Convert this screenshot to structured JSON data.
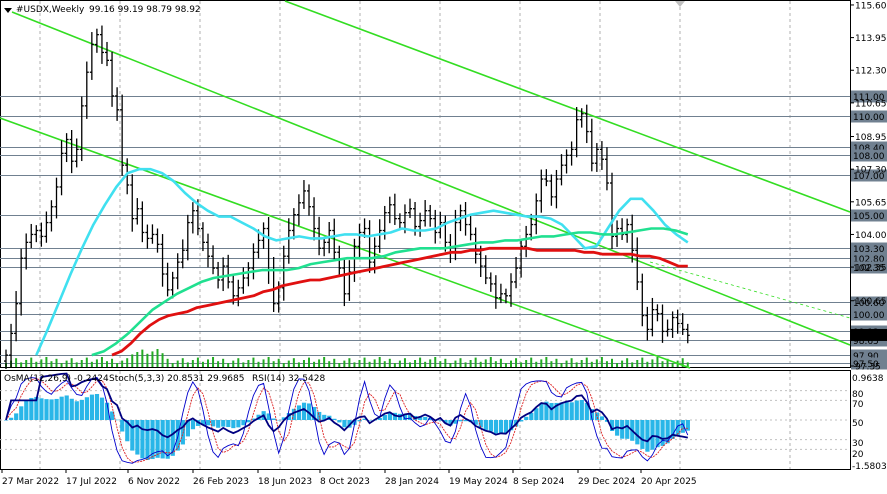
{
  "header": {
    "symbol": "#USDX,Weekly",
    "ohlc": "99.16 99.19 98.79 98.92"
  },
  "indicator_header": {
    "osma": "OsMA(12,26,9) -0.2424",
    "stoch": "Stoch(5,3,3) 20.8531 29.9685",
    "rsi": "RSI(14) 32.5428"
  },
  "colors": {
    "price_bars": "#000000",
    "sma50": "#40e0f0",
    "sma144": "#20e090",
    "sma200": "#e01010",
    "trendlines": "#33dd22",
    "osma_hist": "#29b6e8",
    "stoch_main": "#0000cc",
    "stoch_signal": "#dd2222",
    "rsi": "#000080",
    "volume": "#22aa22",
    "level_lines": "#708090"
  },
  "chart_data": {
    "type": "line",
    "series": [
      {
        "values": [
          97.9,
          99.0,
          100.5,
          102.8,
          103.6,
          104.0,
          104.2,
          103.9,
          104.6,
          105.4,
          106.4,
          108.1,
          108.8,
          107.7,
          108.3,
          110.5,
          112.2,
          113.6,
          114.1,
          113.2,
          112.8,
          111.0,
          110.3,
          107.5,
          106.5,
          104.8,
          105.3,
          104.1,
          103.8,
          104.0,
          103.5,
          102.0,
          101.2,
          101.8,
          102.6,
          103.2,
          104.6,
          105.2,
          104.3,
          103.6,
          102.9,
          102.3,
          101.7,
          102.4,
          101.6,
          100.9,
          101.3,
          101.8,
          102.3,
          103.1,
          103.7,
          104.3,
          102.2,
          100.5,
          101.3,
          102.9,
          104.2,
          105.0,
          105.6,
          106.2,
          105.4,
          104.3,
          103.3,
          103.6,
          104.2,
          103.1,
          102.3,
          101.0,
          102.1,
          103.4,
          104.1,
          104.3,
          102.6,
          103.4,
          104.2,
          105.1,
          105.5,
          104.8,
          104.6,
          105.1,
          105.3,
          104.4,
          104.7,
          105.2,
          104.8,
          104.1,
          104.6,
          103.6,
          103.1,
          104.6,
          105.2,
          104.5,
          104.0,
          103.0,
          102.4,
          101.8,
          101.5,
          100.8,
          101.0,
          100.9,
          101.6,
          102.3,
          103.4,
          104.0,
          104.5,
          105.7,
          106.8,
          106.7,
          105.9,
          106.8,
          107.5,
          108.0,
          108.3,
          109.8,
          110.1,
          109.2,
          107.6,
          108.3,
          107.8,
          106.6,
          103.9,
          104.3,
          104.0,
          104.5,
          103.2,
          101.6,
          99.9,
          99.2,
          100.2,
          100.0,
          99.1,
          99.2,
          99.8,
          99.5,
          99.2,
          98.9
        ]
      },
      {
        "name": "SMA50",
        "values": [
          97.9,
          99.2,
          100.6,
          102.0,
          103.3,
          104.5,
          105.5,
          106.4,
          107.1,
          107.3,
          107.3,
          107.1,
          106.7,
          106.1,
          105.6,
          105.2,
          104.9,
          104.9,
          104.6,
          104.3,
          103.9,
          103.7,
          103.8,
          103.9,
          103.8,
          103.8,
          103.9,
          104.0,
          104.0,
          103.9,
          104.0,
          104.1,
          104.3,
          104.2,
          104.2,
          104.3,
          104.6,
          104.8,
          105.0,
          105.1,
          105.2,
          105.1,
          105.0,
          104.9,
          104.9,
          104.8,
          104.5,
          103.9,
          103.3,
          103.4,
          104.3,
          105.2,
          105.8,
          105.8,
          105.2,
          104.5,
          104.0,
          103.6
        ]
      },
      {
        "name": "SMA144",
        "values": [
          97.9,
          98.1,
          98.5,
          99.0,
          99.6,
          100.2,
          100.6,
          101.0,
          101.3,
          101.6,
          101.8,
          101.9,
          102.0,
          102.1,
          102.2,
          102.2,
          102.2,
          102.3,
          102.5,
          102.6,
          102.7,
          102.8,
          102.8,
          102.8,
          102.9,
          103.1,
          103.2,
          103.3,
          103.3,
          103.3,
          103.4,
          103.5,
          103.6,
          103.6,
          103.7,
          103.7,
          103.8,
          103.9,
          103.9,
          104.0,
          104.1,
          104.1,
          104.0,
          104.0,
          104.1,
          104.2,
          104.3,
          104.3,
          104.2,
          104.0
        ]
      },
      {
        "name": "SMA200",
        "values": [
          97.9,
          98.1,
          98.5,
          99.0,
          99.4,
          99.7,
          99.9,
          100.0,
          100.1,
          100.3,
          100.4,
          100.5,
          100.6,
          100.7,
          100.8,
          100.9,
          101.1,
          101.2,
          101.4,
          101.5,
          101.6,
          101.7,
          101.7,
          101.8,
          101.9,
          102.0,
          102.1,
          102.2,
          102.3,
          102.4,
          102.5,
          102.6,
          102.7,
          102.8,
          102.9,
          103.0,
          103.1,
          103.1,
          103.2,
          103.2,
          103.3,
          103.3,
          103.3,
          103.3,
          103.3,
          103.2,
          103.2,
          103.2,
          103.2,
          103.2,
          103.1,
          103.1,
          103.0,
          103.0,
          103.0,
          103.0,
          102.9,
          102.9,
          102.8,
          102.6,
          102.4,
          102.4
        ]
      }
    ],
    "x_tick_labels": [
      "27 Mar 2022",
      "17 Jul 2022",
      "6 Nov 2022",
      "26 Feb 2023",
      "18 Jun 2023",
      "8 Oct 2023",
      "28 Jan 2024",
      "19 May 2024",
      "8 Sep 2024",
      "29 Dec 2024",
      "20 Apr 2025"
    ],
    "y_tick_labels": [
      "115.60",
      "113.95",
      "112.30",
      "110.65",
      "108.95",
      "107.30",
      "105.65",
      "104.00",
      "102.35",
      "100.65",
      "99.00",
      "97.35"
    ],
    "levels": [
      "111.00",
      "110.00",
      "108.40",
      "108.00",
      "107.00",
      "105.00",
      "103.30",
      "102.80",
      "102.35",
      "100.60",
      "100.00",
      "99.13",
      "98.65",
      "97.90",
      "97.50"
    ],
    "current_price": "98.92",
    "indicator_y_labels": [
      "0.9638",
      "80",
      "70",
      "50",
      "30",
      "20",
      "-1.5803"
    ],
    "ylim": [
      97.3,
      115.8
    ]
  }
}
